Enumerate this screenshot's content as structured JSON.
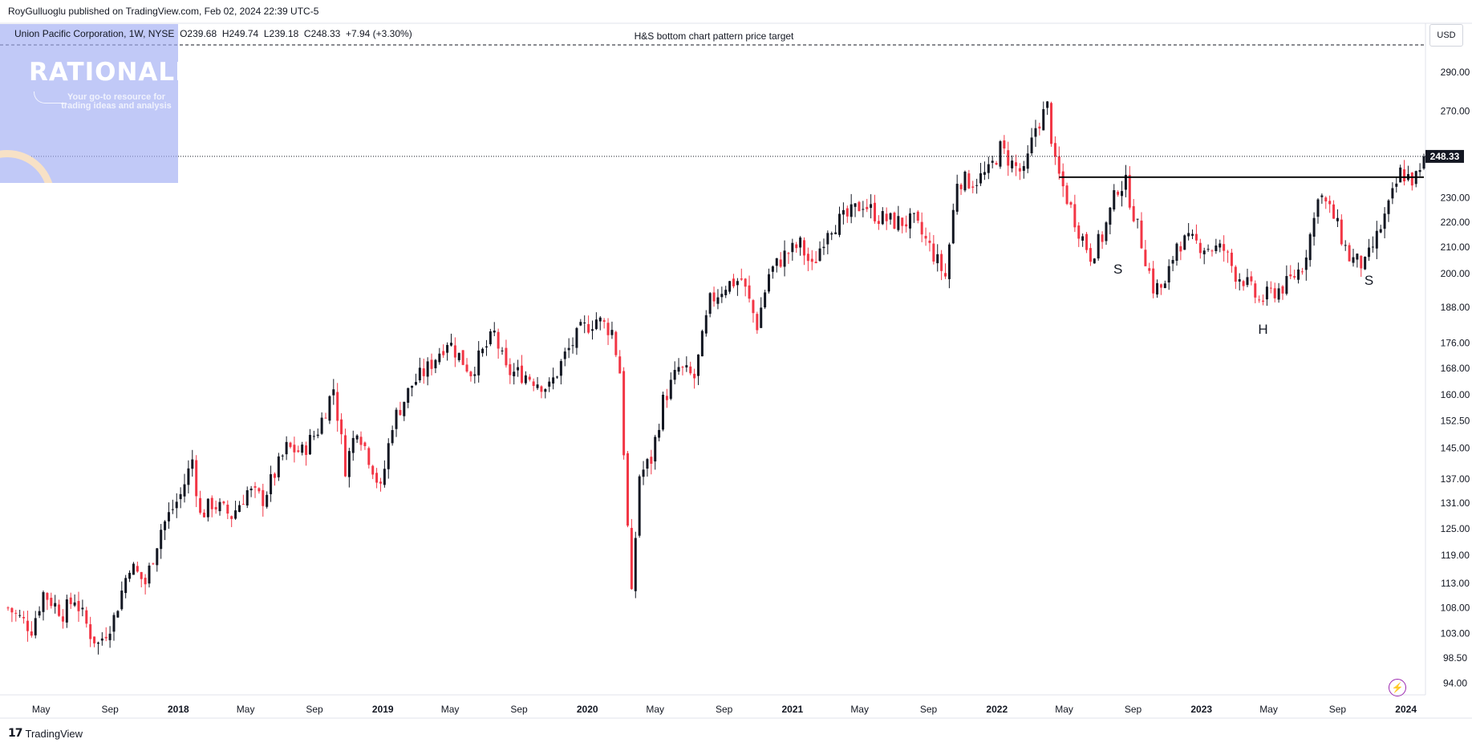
{
  "publisher": {
    "author": "RoyGulluoglu",
    "text": "published on TradingView.com, Feb 02, 2024 22:39 UTC-5"
  },
  "symbol_info": "Union Pacific Corporation, 1W, NYSE",
  "ohlc": {
    "open": "O239.68",
    "high": "H249.74",
    "low": "L239.18",
    "close": "C248.33",
    "change": "+7.94 (+3.30%)"
  },
  "annotation": "H&S bottom chart pattern price target",
  "currency": "USD",
  "watermark": {
    "title": "RATIONALE",
    "tagline": "Your go-to resource for trading ideas and analysis"
  },
  "brand": "TradingView",
  "brand_logo": "17",
  "icons": {
    "logo": "tradingview-logo-icon",
    "flash": "lightning-icon"
  },
  "colors": {
    "up": "#131722",
    "down": "#f23645",
    "neckline": "#000000",
    "price_line": "#131722",
    "watermark_bg": "#a0acf2"
  },
  "chart_data": {
    "type": "candlestick",
    "title": "",
    "scale": "log",
    "timeframe": "1W",
    "x_range": [
      "2017-03-03",
      "2024-02-02"
    ],
    "ylim": [
      92,
      305
    ],
    "price_ticks": [
      "290.00",
      "270.00",
      "230.00",
      "220.00",
      "210.00",
      "200.00",
      "188.00",
      "176.00",
      "168.00",
      "160.00",
      "152.50",
      "145.00",
      "137.00",
      "131.00",
      "125.00",
      "119.00",
      "113.00",
      "108.00",
      "103.00",
      "98.50",
      "94.00"
    ],
    "last_price_label": "248.33",
    "last_price": 248.33,
    "time_labels": [
      {
        "text": "May",
        "date": "2017-05-01",
        "bold": false
      },
      {
        "text": "Sep",
        "date": "2017-09-01",
        "bold": false
      },
      {
        "text": "2018",
        "date": "2018-01-01",
        "bold": true
      },
      {
        "text": "May",
        "date": "2018-05-01",
        "bold": false
      },
      {
        "text": "Sep",
        "date": "2018-09-01",
        "bold": false
      },
      {
        "text": "2019",
        "date": "2019-01-01",
        "bold": true
      },
      {
        "text": "May",
        "date": "2019-05-01",
        "bold": false
      },
      {
        "text": "Sep",
        "date": "2019-09-01",
        "bold": false
      },
      {
        "text": "2020",
        "date": "2020-01-01",
        "bold": true
      },
      {
        "text": "May",
        "date": "2020-05-01",
        "bold": false
      },
      {
        "text": "Sep",
        "date": "2020-09-01",
        "bold": false
      },
      {
        "text": "2021",
        "date": "2021-01-01",
        "bold": true
      },
      {
        "text": "May",
        "date": "2021-05-01",
        "bold": false
      },
      {
        "text": "Sep",
        "date": "2021-09-01",
        "bold": false
      },
      {
        "text": "2022",
        "date": "2022-01-01",
        "bold": true
      },
      {
        "text": "May",
        "date": "2022-05-01",
        "bold": false
      },
      {
        "text": "Sep",
        "date": "2022-09-01",
        "bold": false
      },
      {
        "text": "2023",
        "date": "2023-01-01",
        "bold": true
      },
      {
        "text": "May",
        "date": "2023-05-01",
        "bold": false
      },
      {
        "text": "Sep",
        "date": "2023-09-01",
        "bold": false
      },
      {
        "text": "2024",
        "date": "2024-01-01",
        "bold": true
      }
    ],
    "price_path": [
      [
        "2017-03-03",
        108
      ],
      [
        "2017-04-14",
        104
      ],
      [
        "2017-05-05",
        111
      ],
      [
        "2017-06-09",
        107
      ],
      [
        "2017-06-30",
        110
      ],
      [
        "2017-07-28",
        103
      ],
      [
        "2017-08-11",
        101
      ],
      [
        "2017-09-08",
        106
      ],
      [
        "2017-10-06",
        117
      ],
      [
        "2017-11-03",
        113
      ],
      [
        "2017-12-01",
        125
      ],
      [
        "2018-01-05",
        133
      ],
      [
        "2018-01-26",
        142
      ],
      [
        "2018-02-09",
        128
      ],
      [
        "2018-03-02",
        131
      ],
      [
        "2018-04-06",
        128
      ],
      [
        "2018-05-04",
        134
      ],
      [
        "2018-06-01",
        132
      ],
      [
        "2018-07-13",
        145
      ],
      [
        "2018-08-10",
        144
      ],
      [
        "2018-09-07",
        150
      ],
      [
        "2018-10-05",
        162
      ],
      [
        "2018-10-26",
        140
      ],
      [
        "2018-11-16",
        151
      ],
      [
        "2018-12-14",
        140
      ],
      [
        "2018-12-28",
        134
      ],
      [
        "2019-01-18",
        152
      ],
      [
        "2019-02-22",
        163
      ],
      [
        "2019-03-22",
        168
      ],
      [
        "2019-04-26",
        177
      ],
      [
        "2019-06-07",
        167
      ],
      [
        "2019-07-19",
        179
      ],
      [
        "2019-08-09",
        167
      ],
      [
        "2019-09-13",
        166
      ],
      [
        "2019-10-25",
        162
      ],
      [
        "2019-11-22",
        172
      ],
      [
        "2019-12-20",
        180
      ],
      [
        "2020-01-17",
        184
      ],
      [
        "2020-02-14",
        180
      ],
      [
        "2020-02-28",
        167
      ],
      [
        "2020-03-13",
        125
      ],
      [
        "2020-03-20",
        110
      ],
      [
        "2020-04-03",
        138
      ],
      [
        "2020-04-24",
        142
      ],
      [
        "2020-05-15",
        158
      ],
      [
        "2020-06-12",
        168
      ],
      [
        "2020-07-10",
        165
      ],
      [
        "2020-08-07",
        190
      ],
      [
        "2020-09-04",
        196
      ],
      [
        "2020-10-02",
        198
      ],
      [
        "2020-10-30",
        182
      ],
      [
        "2020-11-20",
        200
      ],
      [
        "2020-12-18",
        207
      ],
      [
        "2021-01-15",
        211
      ],
      [
        "2021-02-05",
        202
      ],
      [
        "2021-03-05",
        218
      ],
      [
        "2021-04-09",
        222
      ],
      [
        "2021-05-07",
        228
      ],
      [
        "2021-06-04",
        222
      ],
      [
        "2021-07-02",
        220
      ],
      [
        "2021-08-06",
        220
      ],
      [
        "2021-09-03",
        210
      ],
      [
        "2021-10-01",
        199
      ],
      [
        "2021-10-22",
        238
      ],
      [
        "2021-11-19",
        237
      ],
      [
        "2021-12-17",
        241
      ],
      [
        "2022-01-07",
        252
      ],
      [
        "2022-01-28",
        245
      ],
      [
        "2022-02-18",
        240
      ],
      [
        "2022-03-11",
        262
      ],
      [
        "2022-04-01",
        272
      ],
      [
        "2022-04-15",
        244
      ],
      [
        "2022-05-06",
        230
      ],
      [
        "2022-05-27",
        217
      ],
      [
        "2022-06-17",
        207
      ],
      [
        "2022-07-08",
        214
      ],
      [
        "2022-08-05",
        235
      ],
      [
        "2022-08-19",
        236
      ],
      [
        "2022-09-16",
        212
      ],
      [
        "2022-10-07",
        195
      ],
      [
        "2022-10-28",
        195
      ],
      [
        "2022-11-18",
        212
      ],
      [
        "2022-12-16",
        212
      ],
      [
        "2023-01-13",
        210
      ],
      [
        "2023-02-10",
        209
      ],
      [
        "2023-03-03",
        200
      ],
      [
        "2023-03-17",
        198
      ],
      [
        "2023-04-14",
        190
      ],
      [
        "2023-05-05",
        193
      ],
      [
        "2023-06-02",
        196
      ],
      [
        "2023-06-30",
        203
      ],
      [
        "2023-07-21",
        221
      ],
      [
        "2023-07-28",
        233
      ],
      [
        "2023-08-25",
        222
      ],
      [
        "2023-09-22",
        206
      ],
      [
        "2023-10-20",
        203
      ],
      [
        "2023-11-10",
        214
      ],
      [
        "2023-12-01",
        226
      ],
      [
        "2023-12-22",
        241
      ],
      [
        "2024-01-12",
        238
      ],
      [
        "2024-01-26",
        240
      ],
      [
        "2024-02-02",
        248.33
      ]
    ],
    "neckline": {
      "start": "2022-04-22",
      "end": "2024-02-02",
      "price": 239
    },
    "pattern_labels": [
      {
        "text": "S",
        "date": "2022-08-05",
        "price": 200
      },
      {
        "text": "H",
        "date": "2023-04-21",
        "price": 179
      },
      {
        "text": "S",
        "date": "2023-10-27",
        "price": 196
      }
    ]
  }
}
